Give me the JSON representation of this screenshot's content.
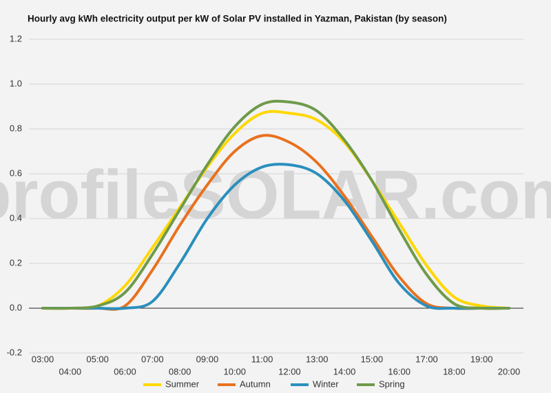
{
  "chart_data": {
    "type": "line",
    "title": "Hourly avg kWh electricity output per kW of Solar PV installed in Yazman, Pakistan (by season)",
    "watermark": "profileSOLAR.com",
    "categories": [
      "03:00",
      "04:00",
      "05:00",
      "06:00",
      "07:00",
      "08:00",
      "09:00",
      "10:00",
      "11:00",
      "12:00",
      "13:00",
      "14:00",
      "15:00",
      "16:00",
      "17:00",
      "18:00",
      "19:00",
      "20:00"
    ],
    "series": [
      {
        "name": "Summer",
        "color": "#ffd700",
        "values": [
          0,
          0,
          0.01,
          0.1,
          0.27,
          0.45,
          0.63,
          0.78,
          0.87,
          0.87,
          0.84,
          0.74,
          0.57,
          0.38,
          0.19,
          0.05,
          0.01,
          0
        ]
      },
      {
        "name": "Autumn",
        "color": "#e8711f",
        "values": [
          0,
          0,
          0,
          0.01,
          0.17,
          0.37,
          0.55,
          0.7,
          0.77,
          0.74,
          0.65,
          0.5,
          0.32,
          0.14,
          0.02,
          0,
          0,
          0
        ]
      },
      {
        "name": "Winter",
        "color": "#2a8fbd",
        "values": [
          0,
          0,
          0,
          0,
          0.03,
          0.2,
          0.4,
          0.55,
          0.63,
          0.64,
          0.6,
          0.48,
          0.3,
          0.11,
          0.01,
          0,
          0,
          0
        ]
      },
      {
        "name": "Spring",
        "color": "#6f9a4a",
        "values": [
          0,
          0,
          0.01,
          0.07,
          0.24,
          0.44,
          0.64,
          0.81,
          0.91,
          0.92,
          0.88,
          0.75,
          0.57,
          0.35,
          0.15,
          0.02,
          0,
          0
        ]
      }
    ],
    "ylim": [
      -0.2,
      1.2
    ],
    "yticks": [
      -0.2,
      {
        "value": 0,
        "label": "0.0"
      },
      0.2,
      0.4,
      0.6,
      0.8,
      {
        "value": 1,
        "label": "1.0"
      },
      1.2
    ],
    "grid": true
  }
}
